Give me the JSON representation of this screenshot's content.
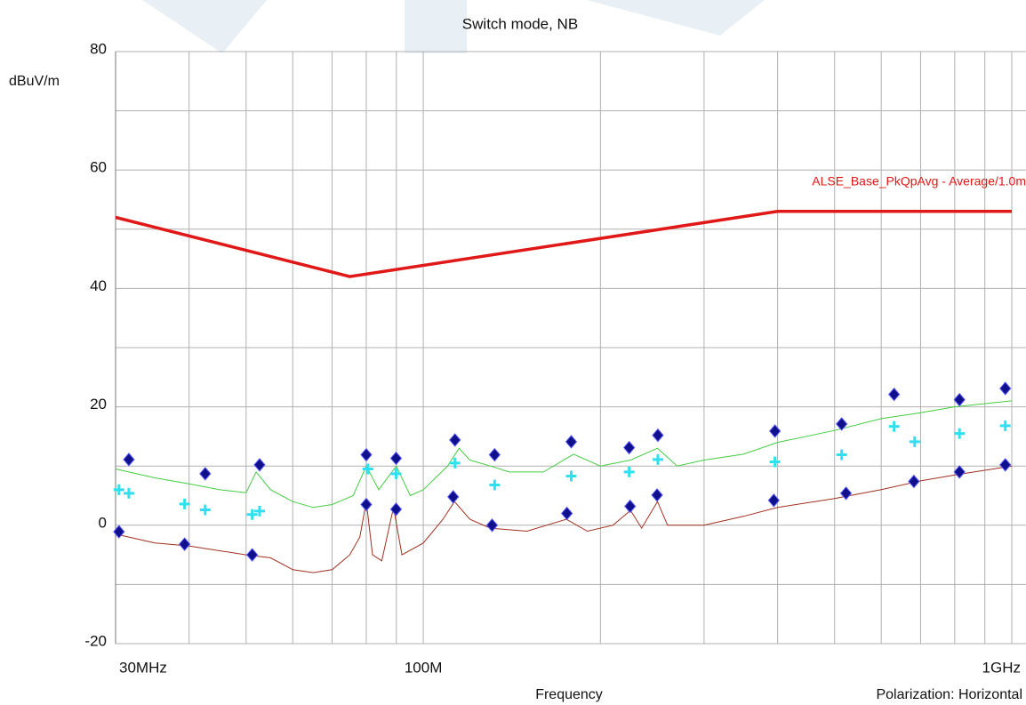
{
  "chart_data": {
    "type": "line",
    "title": "Switch mode, NB",
    "y_label": "dBuV/m",
    "x_label": "Frequency",
    "annotation": "Polarization: Horizontal",
    "xscale": "log",
    "xlim": [
      30,
      1000
    ],
    "ylim": [
      -20,
      80
    ],
    "yticks": [
      -20,
      0,
      20,
      40,
      60,
      80
    ],
    "minor_yticks": [
      -10,
      10,
      30,
      50,
      70
    ],
    "xticks": [
      {
        "value": 30,
        "label": "30MHz"
      },
      {
        "value": 100,
        "label": "100M"
      },
      {
        "value": 1000,
        "label": "1GHz"
      }
    ],
    "minor_xticks": [
      40,
      50,
      60,
      70,
      80,
      90,
      200,
      300,
      400,
      500,
      600,
      700,
      800,
      900
    ],
    "grid": true,
    "series": [
      {
        "name": "ALSE_Base_PkQpAvg  - Average/1.0m",
        "color": "#e01818",
        "marker": "line",
        "x": [
          30,
          75,
          400,
          1000
        ],
        "y": [
          52,
          42,
          53,
          53
        ]
      },
      {
        "color": "#44cc44",
        "marker": "line",
        "x": [
          30,
          35,
          40,
          45,
          50,
          52,
          55,
          60,
          65,
          70,
          76,
          80,
          84,
          90,
          95,
          100,
          110,
          115,
          120,
          130,
          140,
          160,
          180,
          200,
          225,
          250,
          270,
          300,
          350,
          400,
          500,
          600,
          700,
          800,
          1000
        ],
        "y": [
          9.5,
          8,
          7,
          6,
          5.5,
          9,
          6,
          4,
          3,
          3.5,
          5,
          10,
          6,
          10,
          5,
          6,
          10,
          13,
          11,
          10,
          9,
          9,
          12,
          10,
          11,
          13,
          10,
          11,
          12,
          14,
          16,
          18,
          19,
          20,
          21
        ]
      },
      {
        "color": "#a03020",
        "marker": "line",
        "x": [
          30,
          35,
          40,
          50,
          55,
          60,
          65,
          70,
          75,
          78,
          80,
          82,
          85,
          89,
          92,
          100,
          108,
          113,
          120,
          130,
          150,
          175,
          190,
          210,
          225,
          235,
          250,
          260,
          300,
          350,
          400,
          500,
          600,
          700,
          800,
          1000
        ],
        "y": [
          -1.5,
          -3,
          -3.5,
          -5,
          -5.5,
          -7.5,
          -8,
          -7.5,
          -5,
          -2,
          4,
          -5,
          -6,
          3,
          -5,
          -3,
          1,
          4,
          1,
          -0.5,
          -1,
          1,
          -1,
          0,
          2.5,
          -0.5,
          4,
          0,
          0,
          1.5,
          3,
          4.5,
          6,
          7.5,
          8.5,
          10
        ]
      },
      {
        "color": "#10108c",
        "marker": "diamond",
        "x": [
          31.6,
          42.6,
          52.7,
          80.0,
          89.9,
          113.2,
          132.2,
          178.4,
          223.8,
          250.4,
          395.9,
          514,
          631,
          815,
          975
        ],
        "y": [
          11.1,
          8.7,
          10.2,
          11.9,
          11.3,
          14.4,
          11.9,
          14.1,
          13.1,
          15.2,
          15.9,
          17.1,
          22.1,
          21.2,
          23.1
        ]
      },
      {
        "color": "#30e0f0",
        "marker": "cross",
        "x": [
          30.4,
          31.6,
          39.3,
          42.6,
          51.2,
          52.7,
          80.5,
          89.9,
          113.2,
          132.2,
          178.4,
          223.8,
          250.4,
          395.9,
          514,
          631,
          684,
          815,
          975
        ],
        "y": [
          6.0,
          5.4,
          3.6,
          2.6,
          1.8,
          2.4,
          9.5,
          8.7,
          10.5,
          6.8,
          8.3,
          9.0,
          11.1,
          10.7,
          11.9,
          16.7,
          14.1,
          15.5,
          16.8
        ]
      },
      {
        "color": "#10108c",
        "marker": "diamond",
        "x": [
          30.4,
          39.3,
          51.2,
          80.0,
          89.9,
          112.4,
          130.9,
          175.4,
          224.6,
          249.6,
          394.1,
          522.8,
          681.8,
          815,
          975
        ],
        "y": [
          -1.1,
          -3.2,
          -5.0,
          3.5,
          2.7,
          4.8,
          0,
          2.0,
          3.2,
          5.1,
          4.2,
          5.4,
          7.4,
          9.0,
          10.2
        ]
      }
    ]
  }
}
